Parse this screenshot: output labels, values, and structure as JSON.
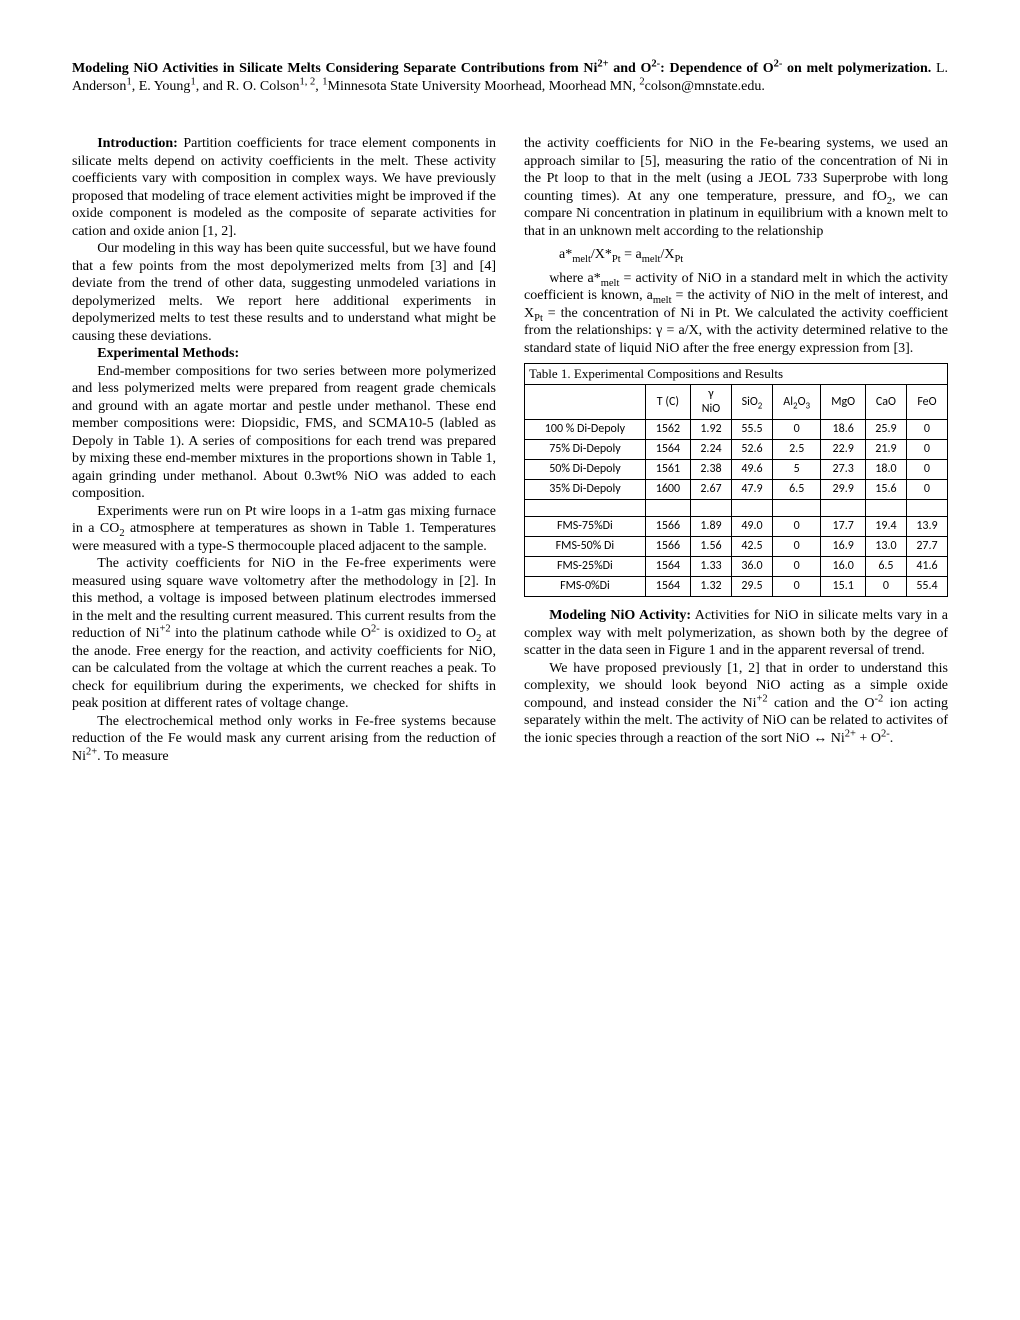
{
  "title": {
    "bold_part1": "Modeling NiO Activities in Silicate Melts Considering Separate Contributions from Ni",
    "bold_sup1": "2+",
    "bold_part2": " and O",
    "bold_sup2": "2-",
    "bold_part3": ": Dependence of O",
    "bold_sup3": "2-",
    "bold_part4": " on melt polymerization.",
    "authors_plain": "  L. Anderson",
    "aff1": "1",
    "authors_plain2": ", E. Young",
    "aff2": "1",
    "authors_plain3": ", and R. O. Colson",
    "aff3": "1, 2",
    "authors_plain4": ", ",
    "aff4": "1",
    "authors_plain5": "Minnesota State University Moorhead, Moorhead MN, ",
    "aff5": "2",
    "email": "colson@mnstate.edu."
  },
  "left": {
    "intro_head": "Introduction:",
    "intro_p1": "  Partition coefficients for trace element components in silicate melts depend on activity coefficients in the melt.  These activity coefficients vary with composition in complex ways.  We have previously proposed that modeling of trace element activities might be improved if the oxide component is modeled as the composite of separate activities for cation and oxide anion [1, 2].",
    "intro_p2": "Our modeling in this way has been quite successful, but we have found that a few points from the most depolymerized melts from [3] and [4] deviate from the trend of other data, suggesting unmodeled variations in depolymerized melts.  We report here additional experiments in depolymerized melts to test these results and to understand what might be causing these deviations.",
    "methods_head": "Experimental Methods:",
    "methods_p1": "End-member compositions for two series between more polymerized and less polymerized melts were prepared from reagent grade chemicals and ground with an agate mortar and pestle under methanol.  These end member compositions were: Diopsidic, FMS, and SCMA10-5 (labled as Depoly in Table 1). A series of compositions for each trend was prepared by mixing these end-member mixtures in the proportions shown in Table 1, again grinding under methanol.  About 0.3wt% NiO was added to each composition.",
    "methods_p2a": "Experiments were run on Pt wire loops in a 1-atm gas mixing furnace in a CO",
    "methods_p2_sub": "2",
    "methods_p2b": " atmosphere at temperatures as shown in Table 1.  Temperatures were measured with a type-S thermocouple placed adjacent to the sample.",
    "methods_p3a": " The activity coefficients for NiO in the Fe-free experiments were measured using square wave voltometry after the methodology in [2].  In this method, a voltage is imposed between platinum electrodes immersed in the melt and the resulting current measured.  This current results from the reduction of Ni",
    "methods_p3_sup1": "+2",
    "methods_p3b": " into the platinum cathode while O",
    "methods_p3_sup2": "2-",
    "methods_p3c": " is oxidized to O",
    "methods_p3_sub2": "2",
    "methods_p3d": " at the anode.  Free energy for the reaction, and activity coefficients for NiO, can be calculated from the voltage at which the current reaches a peak.  To check for equilibrium during the experiments, we checked for shifts in peak position at different rates of voltage change.",
    "methods_p4a": "The electrochemical method only works in Fe-free systems because reduction of the Fe would mask any current arising from the reduction of Ni",
    "methods_p4_sup": "2+",
    "methods_p4b": ".   To measure"
  },
  "right": {
    "cont_p1a": "the activity coefficients for NiO in the Fe-bearing systems, we used an approach similar to [5], measuring the ratio of the concentration of Ni in the Pt loop to that in the melt (using a JEOL 733 Superprobe with long counting times).  At any one temperature, pressure, and fO",
    "cont_p1_sub": "2",
    "cont_p1b": ", we can compare Ni concentration in platinum in equilibrium with a known melt to that in an unknown melt according to the relationship",
    "formula_a": "a*",
    "formula_sub1": "melt",
    "formula_b": "/X*",
    "formula_sub2": "Pt",
    "formula_c": " = a",
    "formula_sub3": "melt",
    "formula_d": "/X",
    "formula_sub4": "Pt",
    "where_a": "where a*",
    "where_sub1": "melt",
    "where_b": " = activity of NiO in a standard melt in which the activity coefficient is known, a",
    "where_sub2": "melt",
    "where_c": " = the activity of NiO in the melt of interest, and X",
    "where_sub3": "Pt",
    "where_d": " = the concentration of Ni in Pt.  We calculated the activity coefficient from the relationships: γ = a/X, with the activity determined relative to the standard state of liquid NiO after the free energy expression from [3].",
    "model_head": "Modeling NiO Activity:",
    "model_p1": " Activities for NiO in silicate melts vary in a complex way with melt polymerization, as shown both by the degree of scatter in the data seen in Figure 1 and in the apparent reversal of trend.",
    "model_p2a": " We have proposed previously [1, 2] that in order to understand this complexity, we should look beyond NiO acting as a simple oxide compound, and instead consider the Ni",
    "model_p2_sup1": "+2",
    "model_p2b": " cation and the O",
    "model_p2_sup2": "-2",
    "model_p2c": " ion acting separately within the melt.  The activity of NiO can be related to activites of the ionic species through a reaction of the sort NiO ↔ Ni",
    "model_p2_sup3": "2+",
    "model_p2d": " + O",
    "model_p2_sup4": "2-",
    "model_p2e": "."
  },
  "table": {
    "caption": "Table 1.  Experimental Compositions and Results",
    "headers": {
      "c1": "",
      "c2": "T (C)",
      "c3a": "γ",
      "c3b": "NiO",
      "c4a": "SiO",
      "c4sub": "2",
      "c5a": "Al",
      "c5sub1": "2",
      "c5b": "O",
      "c5sub2": "3",
      "c6": "MgO",
      "c7": "CaO",
      "c8": "FeO"
    },
    "rows": [
      {
        "name": "100 % Di-Depoly",
        "t": "1562",
        "g": "1.92",
        "sio2": "55.5",
        "al2o3": "0",
        "mgo": "18.6",
        "cao": "25.9",
        "feo": "0"
      },
      {
        "name": "75% Di-Depoly",
        "t": "1564",
        "g": "2.24",
        "sio2": "52.6",
        "al2o3": "2.5",
        "mgo": "22.9",
        "cao": "21.9",
        "feo": "0"
      },
      {
        "name": "50% Di-Depoly",
        "t": "1561",
        "g": "2.38",
        "sio2": "49.6",
        "al2o3": "5",
        "mgo": "27.3",
        "cao": "18.0",
        "feo": "0"
      },
      {
        "name": "35% Di-Depoly",
        "t": "1600",
        "g": "2.67",
        "sio2": "47.9",
        "al2o3": "6.5",
        "mgo": "29.9",
        "cao": "15.6",
        "feo": "0"
      },
      {
        "name": "FMS-75%Di",
        "t": "1566",
        "g": "1.89",
        "sio2": "49.0",
        "al2o3": "0",
        "mgo": "17.7",
        "cao": "19.4",
        "feo": "13.9"
      },
      {
        "name": "FMS-50% Di",
        "t": "1566",
        "g": "1.56",
        "sio2": "42.5",
        "al2o3": "0",
        "mgo": "16.9",
        "cao": "13.0",
        "feo": "27.7"
      },
      {
        "name": "FMS-25%Di",
        "t": "1564",
        "g": "1.33",
        "sio2": "36.0",
        "al2o3": "0",
        "mgo": "16.0",
        "cao": "6.5",
        "feo": "41.6"
      },
      {
        "name": "FMS-0%Di",
        "t": "1564",
        "g": "1.32",
        "sio2": "29.5",
        "al2o3": "0",
        "mgo": "15.1",
        "cao": "0",
        "feo": "55.4"
      }
    ]
  }
}
